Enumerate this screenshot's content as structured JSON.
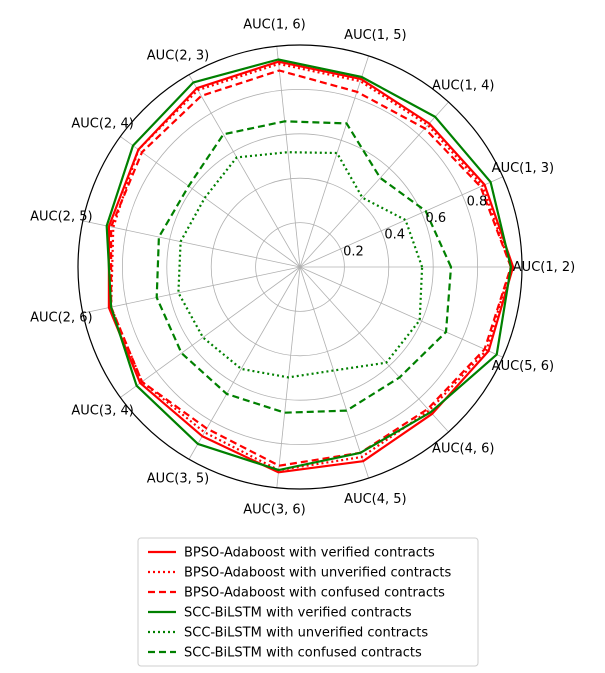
{
  "chart_data": {
    "type": "radar",
    "categories": [
      "AUC(1, 2)",
      "AUC(1, 3)",
      "AUC(1, 4)",
      "AUC(1, 5)",
      "AUC(1, 6)",
      "AUC(2, 3)",
      "AUC(2, 4)",
      "AUC(2, 5)",
      "AUC(2, 6)",
      "AUC(3, 4)",
      "AUC(3, 5)",
      "AUC(3, 6)",
      "AUC(4, 5)",
      "AUC(4, 6)",
      "AUC(5, 6)"
    ],
    "rlim": [
      0,
      1.0
    ],
    "r_ticks": [
      0.2,
      0.4,
      0.6,
      0.8
    ],
    "r_tick_labels": [
      "0.2",
      "0.4",
      "0.6",
      "0.8"
    ],
    "grid": true,
    "legend_position": "bottom",
    "colors": {
      "bpso": "#ff0000",
      "scc": "#008000"
    },
    "series": [
      {
        "name": "BPSO-Adaboost with verified contracts",
        "color": "#ff0000",
        "style": "solid",
        "values": [
          0.96,
          0.91,
          0.87,
          0.89,
          0.93,
          0.93,
          0.9,
          0.88,
          0.88,
          0.89,
          0.88,
          0.93,
          0.92,
          0.89,
          0.93
        ]
      },
      {
        "name": "BPSO-Adaboost with unverified contracts",
        "color": "#ff0000",
        "style": "dotted",
        "values": [
          0.95,
          0.9,
          0.86,
          0.88,
          0.92,
          0.92,
          0.9,
          0.86,
          0.87,
          0.88,
          0.86,
          0.92,
          0.9,
          0.87,
          0.92
        ]
      },
      {
        "name": "BPSO-Adaboost with confused contracts",
        "color": "#ff0000",
        "style": "dashed",
        "values": [
          0.95,
          0.89,
          0.84,
          0.83,
          0.89,
          0.89,
          0.88,
          0.87,
          0.87,
          0.88,
          0.84,
          0.9,
          0.88,
          0.86,
          0.91
        ]
      },
      {
        "name": "SCC-BiLSTM with verified contracts",
        "color": "#008000",
        "style": "solid",
        "values": [
          0.95,
          0.94,
          0.91,
          0.9,
          0.94,
          0.96,
          0.93,
          0.89,
          0.87,
          0.91,
          0.92,
          0.92,
          0.88,
          0.88,
          0.97
        ]
      },
      {
        "name": "SCC-BiLSTM with unverified contracts",
        "color": "#008000",
        "style": "dotted",
        "values": [
          0.55,
          0.52,
          0.42,
          0.54,
          0.52,
          0.57,
          0.53,
          0.55,
          0.56,
          0.54,
          0.53,
          0.5,
          0.49,
          0.58,
          0.59
        ]
      },
      {
        "name": "SCC-BiLSTM with confused contracts",
        "color": "#008000",
        "style": "dashed",
        "values": [
          0.68,
          0.62,
          0.54,
          0.68,
          0.66,
          0.69,
          0.62,
          0.65,
          0.66,
          0.66,
          0.66,
          0.66,
          0.68,
          0.67,
          0.72
        ]
      }
    ]
  }
}
